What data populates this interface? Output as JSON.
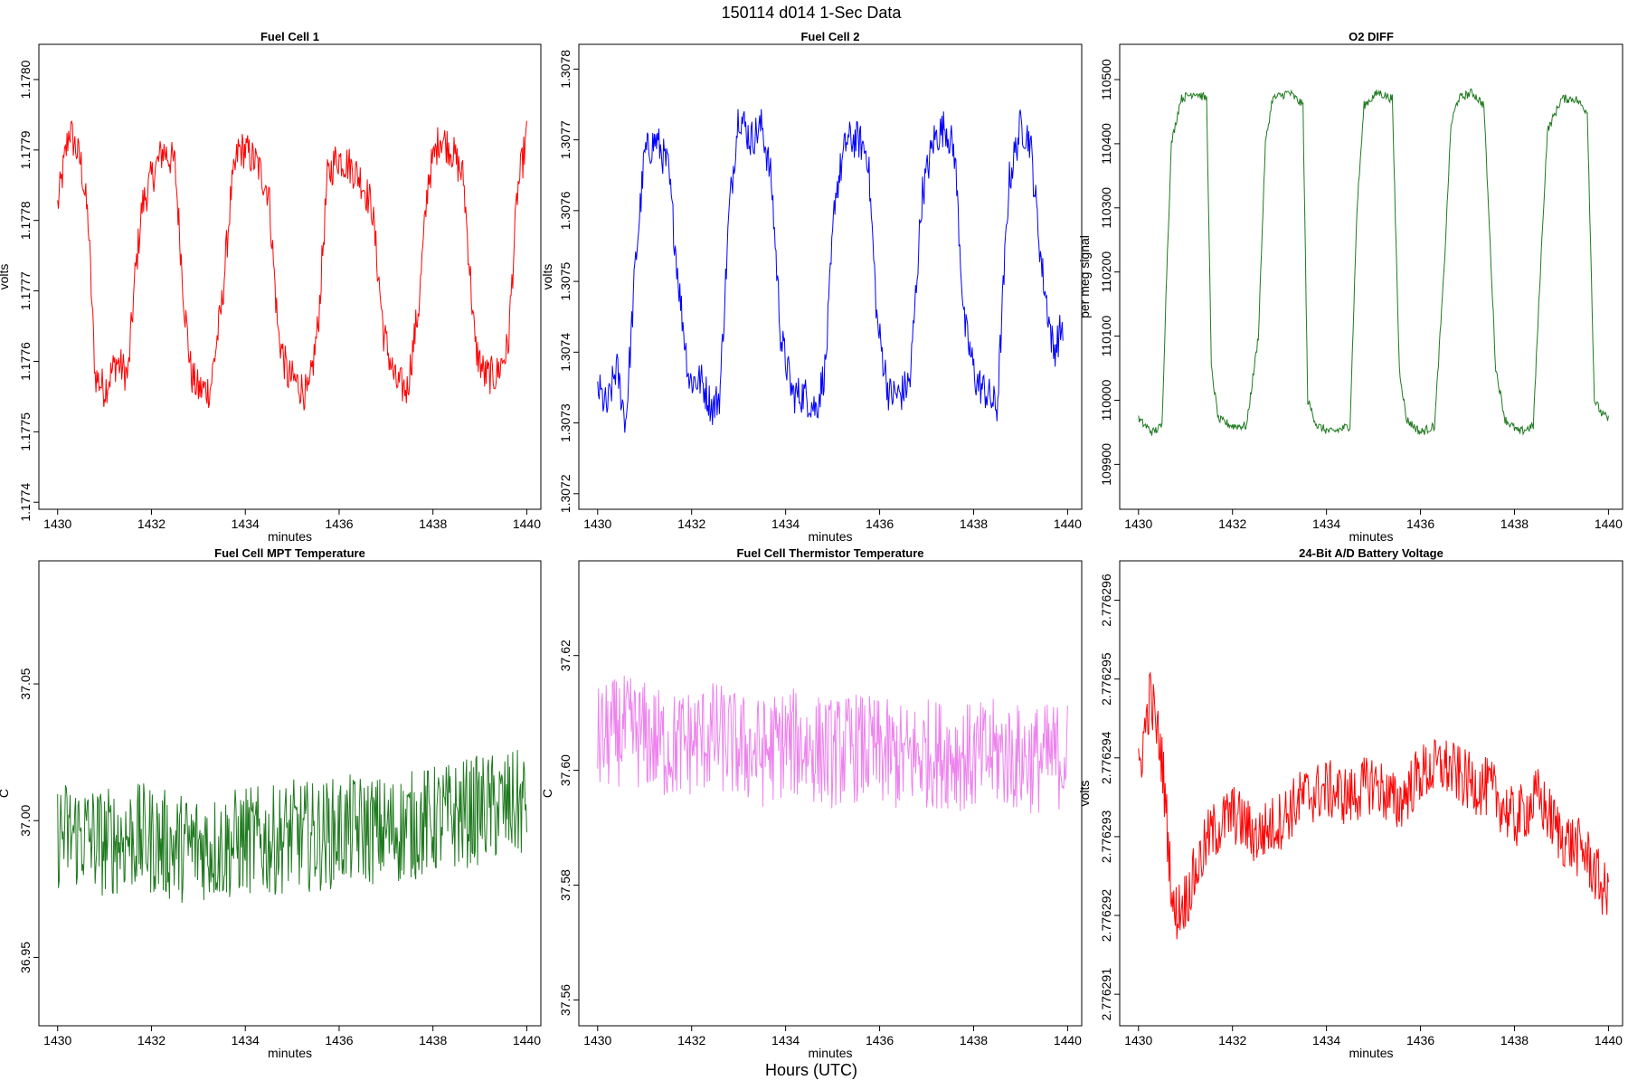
{
  "figure": {
    "title": "150114   d014   1-Sec Data",
    "xlabel": "Hours (UTC)"
  },
  "chart_data": [
    {
      "type": "line",
      "title": "Fuel Cell 1",
      "xlabel": "minutes",
      "ylabel": "volts",
      "color": "#ff0000",
      "xlim": [
        1429.6,
        1440.3
      ],
      "ylim": [
        1.17739,
        1.17805
      ],
      "xticks": [
        "1430",
        "1432",
        "1434",
        "1436",
        "1438",
        "1440"
      ],
      "yticks": [
        "1.1774",
        "1.1775",
        "1.1776",
        "1.1777",
        "1.1778",
        "1.1779",
        "1.1780"
      ],
      "series": [
        {
          "name": "Fuel Cell 1",
          "x": [
            1430.0,
            1430.25,
            1430.5,
            1430.65,
            1430.8,
            1431.0,
            1431.25,
            1431.5,
            1431.65,
            1431.8,
            1432.0,
            1432.25,
            1432.5,
            1432.7,
            1432.85,
            1433.0,
            1433.25,
            1433.5,
            1433.7,
            1433.85,
            1434.0,
            1434.25,
            1434.5,
            1434.7,
            1434.9,
            1435.1,
            1435.35,
            1435.55,
            1435.75,
            1435.95,
            1436.2,
            1436.45,
            1436.7,
            1436.95,
            1437.2,
            1437.45,
            1437.7,
            1437.9,
            1438.15,
            1438.4,
            1438.65,
            1438.9,
            1439.1,
            1439.35,
            1439.6,
            1439.8,
            1440.0
          ],
          "values": [
            1.17782,
            1.17793,
            1.17788,
            1.1778,
            1.17758,
            1.17756,
            1.1776,
            1.17758,
            1.17772,
            1.17782,
            1.17786,
            1.1779,
            1.17788,
            1.17768,
            1.17758,
            1.17756,
            1.17756,
            1.17768,
            1.17784,
            1.1779,
            1.1779,
            1.17788,
            1.17784,
            1.17764,
            1.17758,
            1.17757,
            1.17755,
            1.17765,
            1.17786,
            1.17789,
            1.17788,
            1.17786,
            1.17782,
            1.17764,
            1.17757,
            1.17756,
            1.17768,
            1.17786,
            1.17792,
            1.1779,
            1.17786,
            1.17762,
            1.17758,
            1.17758,
            1.17762,
            1.17784,
            1.17792
          ]
        }
      ]
    },
    {
      "type": "line",
      "title": "Fuel Cell 2",
      "xlabel": "minutes",
      "ylabel": "volts",
      "color": "#0000ff",
      "xlim": [
        1429.6,
        1440.3
      ],
      "ylim": [
        1.307178,
        1.307835
      ],
      "xticks": [
        "1430",
        "1432",
        "1434",
        "1436",
        "1438",
        "1440"
      ],
      "yticks": [
        "1.3072",
        "1.3073",
        "1.3074",
        "1.3075",
        "1.3076",
        "1.3077",
        "1.3078"
      ],
      "series": [
        {
          "name": "Fuel Cell 2",
          "x": [
            1430.0,
            1430.2,
            1430.4,
            1430.6,
            1430.8,
            1431.0,
            1431.25,
            1431.5,
            1431.75,
            1431.95,
            1432.2,
            1432.45,
            1432.6,
            1432.8,
            1433.0,
            1433.25,
            1433.5,
            1433.7,
            1433.9,
            1434.15,
            1434.4,
            1434.65,
            1434.85,
            1435.05,
            1435.3,
            1435.55,
            1435.75,
            1435.95,
            1436.2,
            1436.45,
            1436.65,
            1436.9,
            1437.15,
            1437.4,
            1437.6,
            1437.8,
            1438.05,
            1438.3,
            1438.5,
            1438.75,
            1439.0,
            1439.2,
            1439.45,
            1439.7,
            1439.9
          ],
          "values": [
            1.30735,
            1.30732,
            1.30738,
            1.3073,
            1.30752,
            1.30768,
            1.3077,
            1.30766,
            1.30748,
            1.30736,
            1.30736,
            1.30732,
            1.30734,
            1.3076,
            1.30774,
            1.3077,
            1.30772,
            1.30764,
            1.30742,
            1.30734,
            1.30734,
            1.30732,
            1.30738,
            1.30762,
            1.3077,
            1.3077,
            1.30768,
            1.30744,
            1.30734,
            1.30734,
            1.30736,
            1.30762,
            1.3077,
            1.30772,
            1.30768,
            1.30744,
            1.30736,
            1.30734,
            1.30732,
            1.30764,
            1.30772,
            1.3077,
            1.30752,
            1.3074,
            1.30744
          ]
        }
      ]
    },
    {
      "type": "line",
      "title": "O2 DIFF",
      "xlabel": "minutes",
      "ylabel": "per meg signal",
      "color": "#1f7a1f",
      "xlim": [
        1429.6,
        1440.3
      ],
      "ylim": [
        109830,
        110555
      ],
      "xticks": [
        "1430",
        "1432",
        "1434",
        "1436",
        "1438",
        "1440"
      ],
      "yticks": [
        "109900",
        "110000",
        "110100",
        "110200",
        "110300",
        "110400",
        "110500"
      ],
      "series": [
        {
          "name": "O2 DIFF",
          "x": [
            1430.0,
            1430.3,
            1430.5,
            1430.6,
            1430.7,
            1430.9,
            1431.2,
            1431.45,
            1431.55,
            1431.7,
            1432.0,
            1432.3,
            1432.55,
            1432.7,
            1432.85,
            1433.2,
            1433.5,
            1433.6,
            1433.8,
            1434.1,
            1434.5,
            1434.65,
            1434.8,
            1435.1,
            1435.4,
            1435.55,
            1435.7,
            1436.0,
            1436.3,
            1436.5,
            1436.65,
            1436.8,
            1437.1,
            1437.35,
            1437.6,
            1437.8,
            1438.1,
            1438.4,
            1438.55,
            1438.7,
            1439.0,
            1439.3,
            1439.55,
            1439.7,
            1439.85,
            1440.0
          ],
          "values": [
            109970,
            109950,
            109960,
            110200,
            110400,
            110470,
            110480,
            110470,
            110050,
            109970,
            109960,
            109960,
            110100,
            110400,
            110470,
            110480,
            110460,
            110000,
            109960,
            109950,
            109960,
            110300,
            110460,
            110480,
            110470,
            110050,
            109970,
            109950,
            109960,
            110200,
            110430,
            110470,
            110480,
            110460,
            110050,
            109970,
            109950,
            109960,
            110200,
            110420,
            110470,
            110470,
            110450,
            110000,
            109980,
            109970
          ]
        }
      ]
    },
    {
      "type": "line",
      "title": "Fuel Cell MPT Temperature",
      "xlabel": "minutes",
      "ylabel": "C",
      "color": "#1f7a1f",
      "xlim": [
        1429.6,
        1440.3
      ],
      "ylim": [
        36.925,
        37.095
      ],
      "xticks": [
        "1430",
        "1432",
        "1434",
        "1436",
        "1438",
        "1440"
      ],
      "yticks": [
        "36.95",
        "37.00",
        "37.05"
      ],
      "series": [
        {
          "name": "MPT Temperature",
          "x": [
            1430.0,
            1430.5,
            1431.0,
            1431.5,
            1432.0,
            1432.5,
            1433.0,
            1433.5,
            1434.0,
            1434.5,
            1435.0,
            1435.5,
            1436.0,
            1436.5,
            1437.0,
            1437.5,
            1438.0,
            1438.5,
            1439.0,
            1439.5,
            1440.0
          ],
          "values": [
            36.995,
            36.995,
            36.992,
            36.994,
            36.993,
            36.99,
            36.991,
            36.99,
            36.993,
            36.992,
            36.995,
            36.994,
            36.996,
            36.997,
            36.996,
            36.998,
            37.0,
            37.002,
            37.004,
            37.005,
            37.006
          ]
        }
      ]
    },
    {
      "type": "line",
      "title": "Fuel Cell Thermistor Temperature",
      "xlabel": "minutes",
      "ylabel": "C",
      "color": "#ee82ee",
      "xlim": [
        1429.6,
        1440.3
      ],
      "ylim": [
        37.5555,
        37.6365
      ],
      "xticks": [
        "1430",
        "1432",
        "1434",
        "1436",
        "1438",
        "1440"
      ],
      "yticks": [
        "37.56",
        "37.58",
        "37.60",
        "37.62"
      ],
      "series": [
        {
          "name": "Thermistor Temperature",
          "x": [
            1430.0,
            1430.5,
            1431.0,
            1431.5,
            1432.0,
            1432.5,
            1433.0,
            1433.5,
            1434.0,
            1434.5,
            1435.0,
            1435.5,
            1436.0,
            1436.5,
            1437.0,
            1437.5,
            1438.0,
            1438.5,
            1439.0,
            1439.5,
            1440.0
          ],
          "values": [
            37.605,
            37.607,
            37.606,
            37.604,
            37.605,
            37.606,
            37.604,
            37.603,
            37.605,
            37.604,
            37.603,
            37.604,
            37.603,
            37.602,
            37.603,
            37.603,
            37.602,
            37.603,
            37.602,
            37.602,
            37.603
          ]
        }
      ]
    },
    {
      "type": "line",
      "title": "24-Bit A/D Battery Voltage",
      "xlabel": "minutes",
      "ylabel": "volts",
      "color": "#ff0000",
      "xlim": [
        1429.6,
        1440.3
      ],
      "ylim": [
        2.7762906,
        2.7762965
      ],
      "xticks": [
        "1430",
        "1432",
        "1434",
        "1436",
        "1438",
        "1440"
      ],
      "yticks": [
        "2.776291",
        "2.776292",
        "2.776293",
        "2.776294",
        "2.776295",
        "2.776296"
      ],
      "series": [
        {
          "name": "Battery Voltage",
          "x": [
            1430.0,
            1430.25,
            1430.5,
            1430.75,
            1431.0,
            1431.5,
            1432.0,
            1432.5,
            1433.0,
            1433.5,
            1434.0,
            1434.5,
            1435.0,
            1435.5,
            1436.0,
            1436.5,
            1437.0,
            1437.5,
            1438.0,
            1438.5,
            1439.0,
            1439.5,
            1440.0
          ],
          "values": [
            2.7762938,
            2.7762948,
            2.776294,
            2.776292,
            2.7762922,
            2.776293,
            2.7762933,
            2.776293,
            2.7762932,
            2.7762935,
            2.7762936,
            2.7762935,
            2.7762937,
            2.7762934,
            2.7762938,
            2.7762939,
            2.7762937,
            2.7762936,
            2.7762932,
            2.7762935,
            2.776293,
            2.7762928,
            2.7762922
          ]
        }
      ]
    }
  ]
}
